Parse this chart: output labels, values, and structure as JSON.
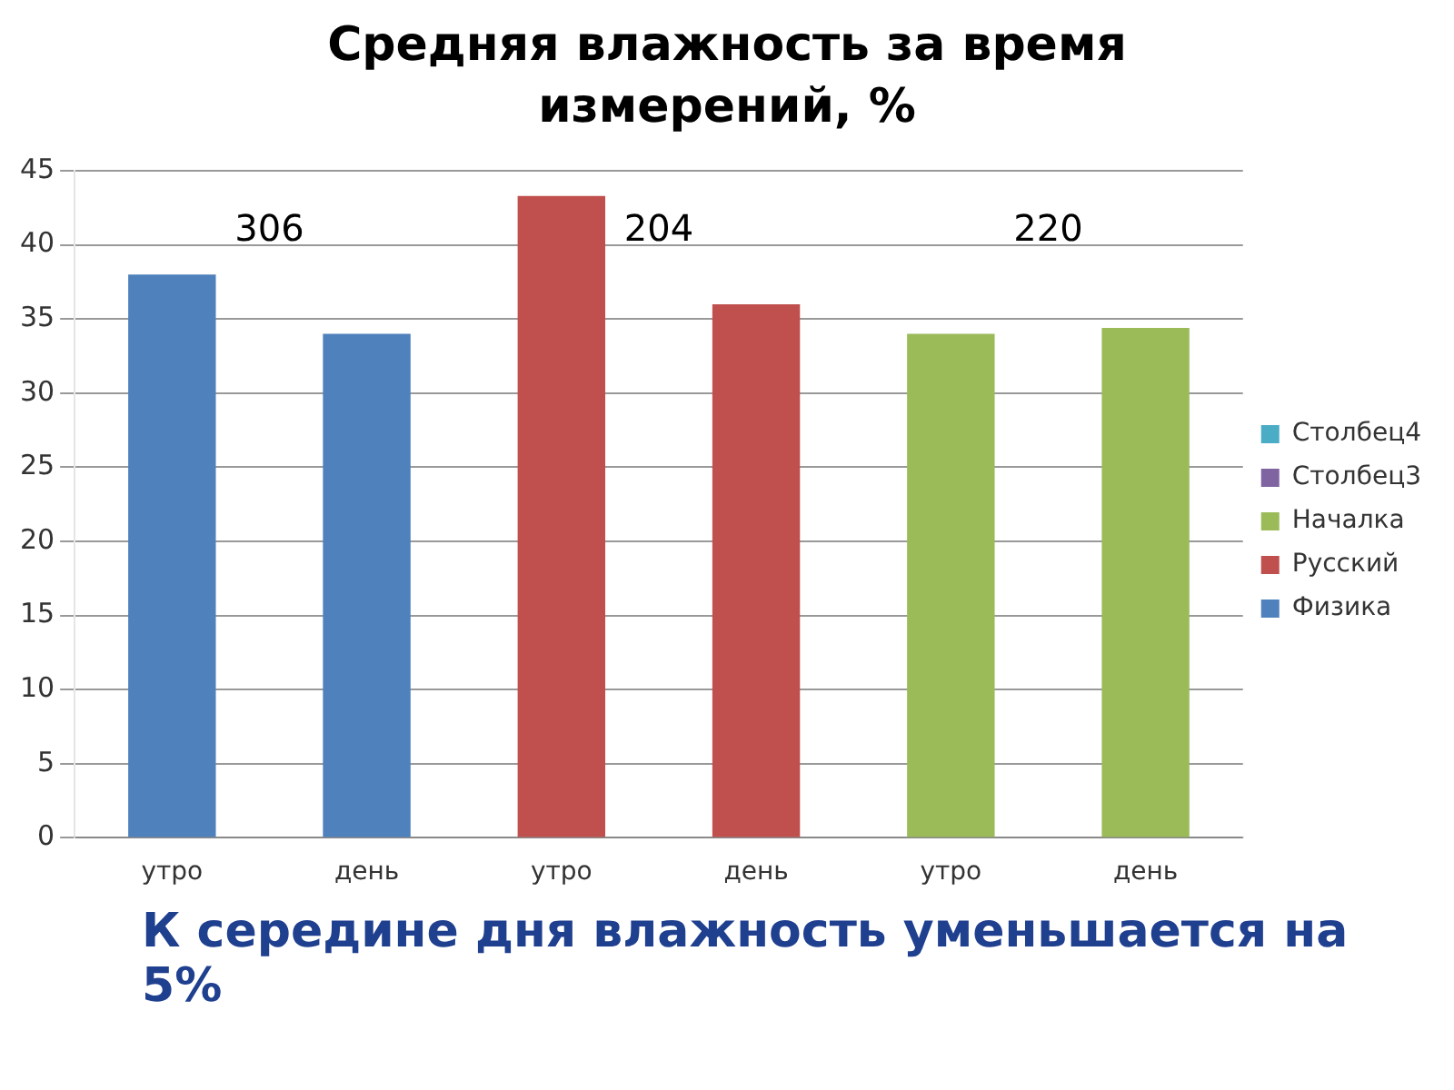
{
  "chart_data": {
    "type": "bar",
    "title": "Средняя влажность за время измерений, %",
    "categories": [
      "утро",
      "день",
      "утро",
      "день",
      "утро",
      "день"
    ],
    "series": [
      {
        "name": "Столбец4",
        "color": "#4bacc6",
        "values": [
          null,
          null,
          null,
          null,
          null,
          null
        ]
      },
      {
        "name": "Столбец3",
        "color": "#8064a2",
        "values": [
          null,
          null,
          null,
          null,
          null,
          null
        ]
      },
      {
        "name": "Началка",
        "color": "#9bbb59",
        "values": [
          null,
          null,
          null,
          null,
          34,
          34.4
        ]
      },
      {
        "name": "Русский",
        "color": "#c0504d",
        "values": [
          null,
          null,
          43.3,
          36,
          null,
          null
        ]
      },
      {
        "name": "Физика",
        "color": "#4f81bd",
        "values": [
          38,
          34,
          null,
          null,
          null,
          null
        ]
      }
    ],
    "ylim": [
      0,
      45
    ],
    "yticks": [
      0,
      5,
      10,
      15,
      20,
      25,
      30,
      35,
      40,
      45
    ],
    "grid": "y",
    "legend": "right",
    "annotations": [
      "306",
      "204",
      "220",
      "К середине дня влажность уменьшается на 5%"
    ]
  }
}
